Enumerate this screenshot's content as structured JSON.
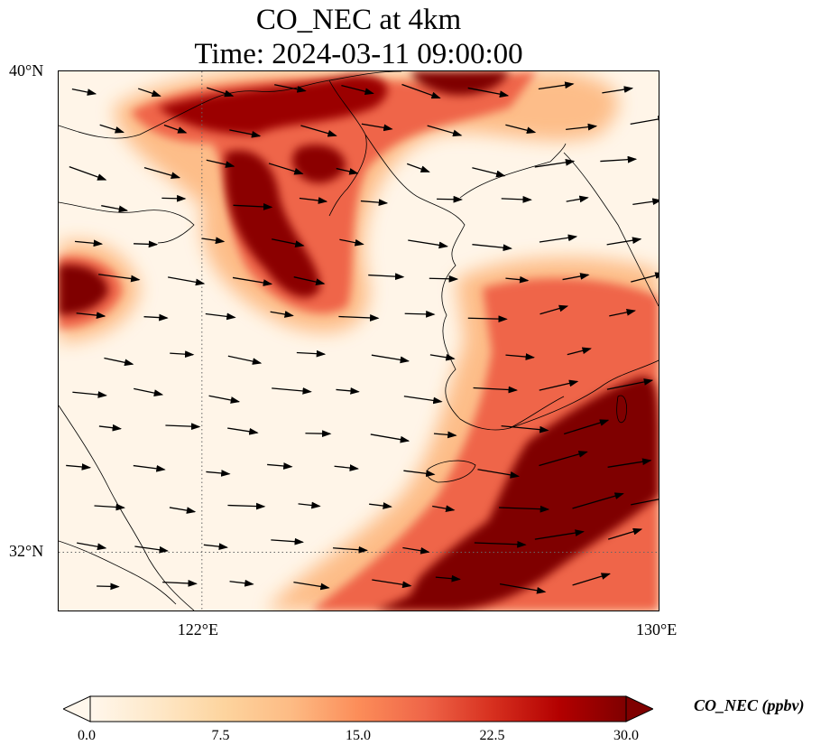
{
  "title": {
    "line1": "CO_NEC at 4km",
    "line2": "Time: 2024-03-11 09:00:00"
  },
  "map": {
    "lon_range": [
      119.5,
      130.0
    ],
    "lat_range": [
      31.0,
      40.0
    ],
    "lon_ticks": [
      {
        "value": 122,
        "label": "122°E"
      },
      {
        "value": 130,
        "label": "130°E"
      }
    ],
    "lat_ticks": [
      {
        "value": 32,
        "label": "32°N"
      },
      {
        "value": 40,
        "label": "40°N"
      }
    ],
    "gridlines": {
      "style": "dotted",
      "lon": [
        122
      ],
      "lat": [
        32
      ]
    },
    "colormap": "OrRd",
    "field_description": "CO concentration field with wind vectors",
    "high_regions": [
      {
        "name": "bohai-bay-north",
        "lon": 123.0,
        "lat": 39.6,
        "peak": 30
      },
      {
        "name": "liaodong-center",
        "lon": 122.8,
        "lat": 38.3,
        "peak": 30
      },
      {
        "name": "liaodong-loop",
        "lon": 124.6,
        "lat": 38.6,
        "peak": 30
      },
      {
        "name": "shandong-west",
        "lon": 119.8,
        "lat": 35.7,
        "peak": 30
      },
      {
        "name": "korea-south-plume",
        "lon": 127.6,
        "lat": 32.6,
        "peak": 30
      },
      {
        "name": "korea-central",
        "lon": 128.3,
        "lat": 35.6,
        "peak": 20
      }
    ]
  },
  "colorbar": {
    "min": 0.0,
    "max": 30.0,
    "ticks": [
      "0.0",
      "7.5",
      "15.0",
      "22.5",
      "30.0"
    ],
    "tick_values": [
      0,
      7.5,
      15,
      22.5,
      30
    ],
    "label": "CO_NEC (ppbv)",
    "colors": [
      "#fff7ec",
      "#fee8c8",
      "#fdd49e",
      "#fdbb84",
      "#fc8d59",
      "#ef6548",
      "#d7301f",
      "#b30000",
      "#7f0000"
    ],
    "extend": "both"
  }
}
